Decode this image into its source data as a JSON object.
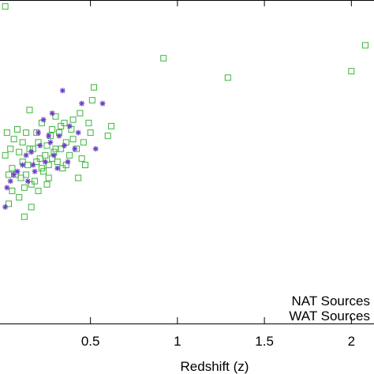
{
  "chart_data": {
    "type": "scatter",
    "title": "",
    "xlabel": "Redshift (z)",
    "ylabel": "",
    "xlim": [
      -0.02,
      2.13
    ],
    "ylim": [
      0,
      10
    ],
    "x_ticks": [
      0.5,
      1,
      1.5,
      2
    ],
    "x_tick_labels": [
      "0.5",
      "1",
      "1.5",
      "2"
    ],
    "grid": false,
    "legend": {
      "placement": "bottom-right",
      "entries": [
        "NAT Sources",
        "WAT Sources"
      ]
    },
    "series": [
      {
        "name": "WAT Sources",
        "marker": "open-square",
        "color": "#3cb43c",
        "points": [
          [
            0.01,
            9.8
          ],
          [
            0.92,
            8.2
          ],
          [
            1.29,
            7.6
          ],
          [
            2.0,
            7.8
          ],
          [
            2.08,
            8.6
          ],
          [
            0.52,
            7.3
          ],
          [
            0.51,
            6.9
          ],
          [
            0.62,
            6.1
          ],
          [
            0.6,
            5.8
          ],
          [
            0.49,
            6.2
          ],
          [
            0.44,
            6.5
          ],
          [
            0.3,
            6.4
          ],
          [
            0.28,
            6.0
          ],
          [
            0.22,
            6.2
          ],
          [
            0.19,
            5.9
          ],
          [
            0.15,
            6.6
          ],
          [
            0.13,
            5.9
          ],
          [
            0.11,
            5.6
          ],
          [
            0.09,
            5.3
          ],
          [
            0.04,
            5.4
          ],
          [
            0.03,
            4.6
          ],
          [
            0.02,
            5.9
          ],
          [
            0.01,
            5.2
          ],
          [
            0.05,
            4.8
          ],
          [
            0.07,
            4.6
          ],
          [
            0.1,
            4.5
          ],
          [
            0.12,
            4.2
          ],
          [
            0.14,
            4.9
          ],
          [
            0.16,
            4.3
          ],
          [
            0.17,
            5.4
          ],
          [
            0.18,
            4.4
          ],
          [
            0.2,
            5.6
          ],
          [
            0.21,
            5.1
          ],
          [
            0.23,
            4.7
          ],
          [
            0.24,
            5.2
          ],
          [
            0.25,
            5.5
          ],
          [
            0.26,
            4.9
          ],
          [
            0.27,
            5.8
          ],
          [
            0.29,
            5.3
          ],
          [
            0.31,
            5.0
          ],
          [
            0.32,
            5.9
          ],
          [
            0.33,
            5.4
          ],
          [
            0.34,
            4.8
          ],
          [
            0.36,
            5.6
          ],
          [
            0.38,
            5.2
          ],
          [
            0.4,
            5.7
          ],
          [
            0.42,
            5.4
          ],
          [
            0.45,
            5.1
          ],
          [
            0.47,
            4.9
          ],
          [
            0.5,
            5.9
          ],
          [
            0.43,
            4.5
          ],
          [
            0.39,
            6.0
          ],
          [
            0.35,
            6.2
          ],
          [
            0.06,
            5.7
          ],
          [
            0.08,
            6.0
          ],
          [
            0.11,
            5.0
          ],
          [
            0.13,
            4.6
          ],
          [
            0.15,
            5.4
          ],
          [
            0.19,
            5.0
          ],
          [
            0.22,
            4.8
          ],
          [
            0.26,
            4.5
          ],
          [
            0.28,
            5.1
          ],
          [
            0.3,
            5.4
          ],
          [
            0.33,
            6.1
          ],
          [
            0.36,
            4.9
          ],
          [
            0.12,
            3.3
          ],
          [
            0.03,
            3.7
          ],
          [
            0.09,
            3.9
          ],
          [
            0.2,
            4.1
          ],
          [
            0.25,
            4.3
          ],
          [
            0.16,
            3.6
          ],
          [
            0.05,
            4.1
          ],
          [
            0.4,
            6.3
          ],
          [
            0.46,
            5.6
          ]
        ]
      },
      {
        "name": "NAT Sources",
        "marker": "asterisk",
        "color": "#6a3cc8",
        "points": [
          [
            0.34,
            7.2
          ],
          [
            0.45,
            6.8
          ],
          [
            0.57,
            6.8
          ],
          [
            0.28,
            6.5
          ],
          [
            0.23,
            6.3
          ],
          [
            0.38,
            6.1
          ],
          [
            0.43,
            5.9
          ],
          [
            0.32,
            5.8
          ],
          [
            0.27,
            5.6
          ],
          [
            0.21,
            5.5
          ],
          [
            0.16,
            5.3
          ],
          [
            0.13,
            5.2
          ],
          [
            0.11,
            4.9
          ],
          [
            0.08,
            4.7
          ],
          [
            0.06,
            4.6
          ],
          [
            0.04,
            4.4
          ],
          [
            0.02,
            4.2
          ],
          [
            0.01,
            3.6
          ],
          [
            0.14,
            4.4
          ],
          [
            0.18,
            4.7
          ],
          [
            0.24,
            5.0
          ],
          [
            0.29,
            5.2
          ],
          [
            0.35,
            5.5
          ],
          [
            0.41,
            5.4
          ],
          [
            0.37,
            5.0
          ],
          [
            0.31,
            4.8
          ],
          [
            0.26,
            5.8
          ],
          [
            0.2,
            5.9
          ],
          [
            0.17,
            4.9
          ],
          [
            0.53,
            5.4
          ]
        ]
      }
    ]
  }
}
